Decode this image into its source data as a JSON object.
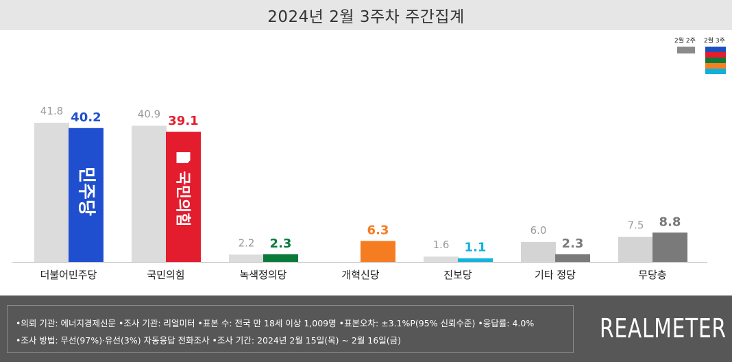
{
  "title": "2024년 2월 3주차 주간집계",
  "legend": {
    "prev_label": "2월 2주",
    "cur_label": "2월 3주",
    "cur_colors": [
      "#1f4fbf",
      "#e51c2c",
      "#0a7a3a",
      "#f58020",
      "#12b0d8"
    ]
  },
  "chart_data": {
    "type": "bar",
    "categories": [
      "더불어민주당",
      "국민의힘",
      "녹색정의당",
      "개혁신당",
      "진보당",
      "기타 정당",
      "무당층"
    ],
    "series": [
      {
        "name": "2월 2주",
        "values": [
          41.8,
          40.9,
          2.2,
          null,
          1.6,
          6.0,
          7.5
        ],
        "labels": [
          "41.8",
          "40.9",
          "2.2",
          "",
          "1.6",
          "6.0",
          "7.5"
        ]
      },
      {
        "name": "2월 3주",
        "values": [
          40.2,
          39.1,
          2.3,
          6.3,
          1.1,
          2.3,
          8.8
        ],
        "labels": [
          "40.2",
          "39.1",
          "2.3",
          "6.3",
          "1.1",
          "2.3",
          "8.8"
        ]
      }
    ],
    "colors": {
      "prev": [
        "#dcdcdc",
        "#dcdcdc",
        "#dcdcdc",
        "#dcdcdc",
        "#dcdcdc",
        "#dcdcdc",
        "#dcdcdc"
      ],
      "cur": [
        "#1f4fcf",
        "#e31d2e",
        "#0a7a3a",
        "#f67c22",
        "#14b3dc",
        "#7a7a7a",
        "#7a7a7a"
      ],
      "cur_label": [
        "#1f4fcf",
        "#e31d2e",
        "#0a7a3a",
        "#f67c22",
        "#14b3dc",
        "#7a7a7a",
        "#7a7a7a"
      ],
      "prev_tall": "#e2e2e2",
      "prev_other": [
        "#dcdcdc",
        "#dcdcdc",
        "#dcdcdc",
        "#dcdcdc",
        "#dcdcdc",
        "#d4d4d4",
        "#d4d4d4"
      ]
    },
    "ylim": [
      0,
      42
    ],
    "bar_logos": [
      "민주당",
      "국민의힘"
    ],
    "legend_position": "top-right"
  },
  "footer": {
    "line1": "•의뢰 기관: 에너지경제신문  •조사 기관: 리얼미터 •표본 수: 전국 만 18세 이상 1,009명 •표본오차: ±3.1%P(95% 신뢰수준) •응답률: 4.0%",
    "line2": "•조사 방법: 무선(97%)·유선(3%) 자동응답 전화조사 •조사 기간: 2024년 2월 15일(목) ~ 2월 16일(금)",
    "brand": "REALMETER"
  }
}
